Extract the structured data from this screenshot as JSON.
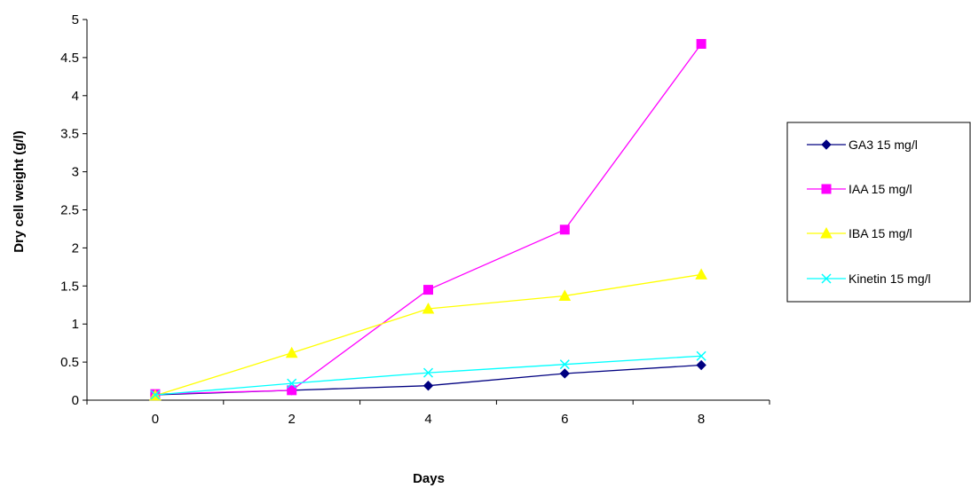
{
  "chart_data": {
    "type": "line",
    "title": "",
    "xlabel": "Days",
    "ylabel": "Dry cell weight (g/l)",
    "x": [
      0,
      2,
      4,
      6,
      8
    ],
    "xlim": [
      -1,
      9
    ],
    "ylim": [
      0,
      5
    ],
    "xticks": [
      "0",
      "2",
      "4",
      "6",
      "8"
    ],
    "yticks": [
      "0",
      "0.5",
      "1",
      "1.5",
      "2",
      "2.5",
      "3",
      "3.5",
      "4",
      "4.5",
      "5"
    ],
    "grid": false,
    "legend_position": "right",
    "series": [
      {
        "name": "GA3 15 mg/l",
        "color": "#000080",
        "marker": "diamond",
        "values": [
          0.07,
          0.13,
          0.19,
          0.35,
          0.46
        ]
      },
      {
        "name": "IAA 15 mg/l",
        "color": "#ff00ff",
        "marker": "square",
        "values": [
          0.08,
          0.13,
          1.45,
          2.24,
          4.68
        ]
      },
      {
        "name": "IBA 15 mg/l",
        "color": "#ffff00",
        "marker": "triangle",
        "values": [
          0.06,
          0.62,
          1.2,
          1.37,
          1.65
        ]
      },
      {
        "name": "Kinetin 15 mg/l",
        "color": "#00ffff",
        "marker": "x",
        "values": [
          0.07,
          0.22,
          0.36,
          0.47,
          0.58
        ]
      }
    ]
  }
}
